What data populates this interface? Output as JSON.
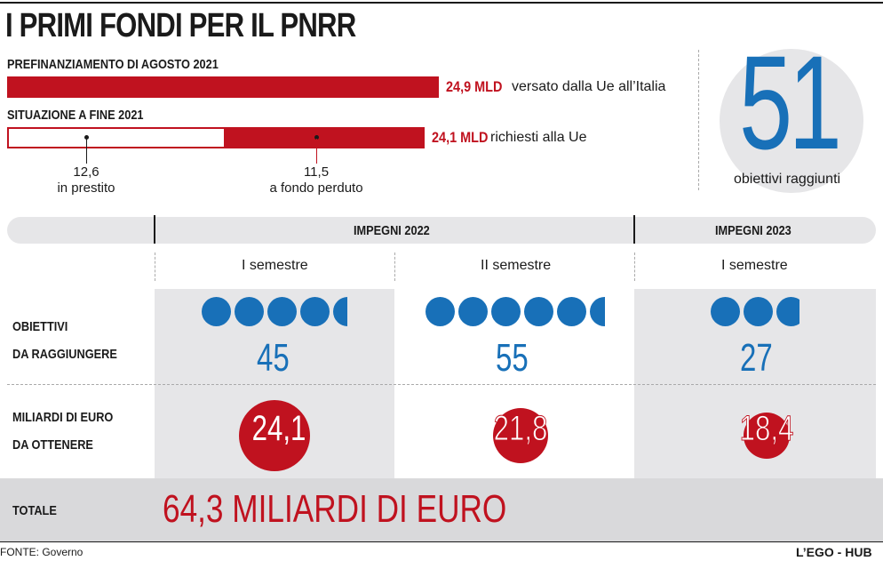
{
  "title": "I PRIMI FONDI PER IL PNRR",
  "prefinanziamento": {
    "label": "PREFINANZIAMENTO DI AGOSTO 2021",
    "value": "24,9 MLD",
    "value_num": 24.9,
    "desc": "versato dalla Ue all’Italia"
  },
  "situazione": {
    "label": "SITUAZIONE A FINE 2021",
    "value": "24,1 MLD",
    "value_num": 24.1,
    "desc": "richiesti alla Ue",
    "parts": [
      {
        "value": "12,6",
        "value_num": 12.6,
        "desc": "in prestito"
      },
      {
        "value": "11,5",
        "value_num": 11.5,
        "desc": "a fondo perduto"
      }
    ]
  },
  "obiettivi_raggiunti": {
    "value": "51",
    "desc": "obiettivi raggiunti"
  },
  "impegni": {
    "h2022": "IMPEGNI 2022",
    "h2023": "IMPEGNI 2023",
    "semesters": [
      "I semestre",
      "II semestre",
      "I semestre"
    ]
  },
  "rows": {
    "obiettivi_line1": "OBIETTIVI",
    "obiettivi_line2": "DA RAGGIUNGERE",
    "miliardi_line1": "MILIARDI DI EURO",
    "miliardi_line2": "DA OTTENERE",
    "totale": "TOTALE"
  },
  "chart_data": {
    "type": "table",
    "title": "I PRIMI FONDI PER IL PNRR",
    "columns": [
      "I semestre 2022",
      "II semestre 2022",
      "I semestre 2023"
    ],
    "obiettivi": [
      "45",
      "55",
      "27"
    ],
    "obiettivi_num": [
      45,
      55,
      27
    ],
    "miliardi": [
      "24,1",
      "21,8",
      "18,4"
    ],
    "miliardi_num": [
      24.1,
      21.8,
      18.4
    ],
    "totale": "64,3 MILIARDI DI EURO"
  },
  "footer": {
    "source": "FONTE: Governo",
    "brand": "L’EGO - HUB"
  },
  "colors": {
    "red": "#c0121f",
    "blue": "#1870b8",
    "grey": "#e6e6e8"
  }
}
